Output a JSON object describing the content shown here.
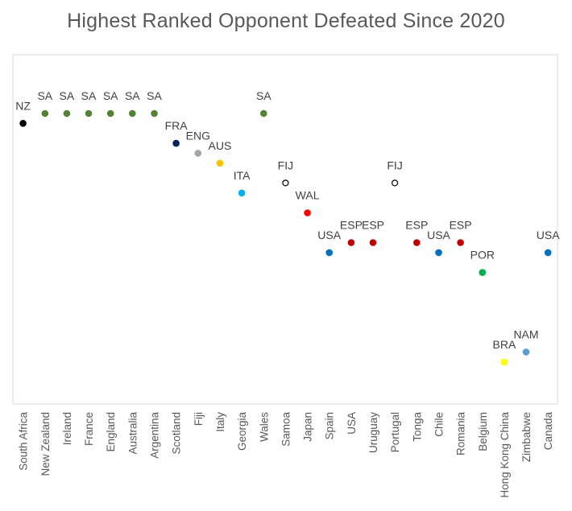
{
  "chart_data": {
    "type": "scatter",
    "title": "Highest Ranked Opponent Defeated Since 2020",
    "xlabel": "",
    "ylabel": "",
    "y_axis": "ranking (1 = top, shown at top)",
    "ylim": [
      1,
      26
    ],
    "grid": false,
    "categories": [
      "South Africa",
      "New Zealand",
      "Ireland",
      "France",
      "England",
      "Australia",
      "Argentina",
      "Scotland",
      "Fiji",
      "Italy",
      "Georgia",
      "Wales",
      "Samoa",
      "Japan",
      "Spain",
      "USA",
      "Uruguay",
      "Portugal",
      "Tonga",
      "Chile",
      "Romania",
      "Belgium",
      "Hong Kong China",
      "Zimbabwe",
      "Canada"
    ],
    "points": [
      {
        "team": "South Africa",
        "opponent": "NZ",
        "rank": 2,
        "color": "#000000",
        "hollow": false
      },
      {
        "team": "New Zealand",
        "opponent": "SA",
        "rank": 1,
        "color": "#548235",
        "hollow": false
      },
      {
        "team": "Ireland",
        "opponent": "SA",
        "rank": 1,
        "color": "#548235",
        "hollow": false
      },
      {
        "team": "France",
        "opponent": "SA",
        "rank": 1,
        "color": "#548235",
        "hollow": false
      },
      {
        "team": "England",
        "opponent": "SA",
        "rank": 1,
        "color": "#548235",
        "hollow": false
      },
      {
        "team": "Australia",
        "opponent": "SA",
        "rank": 1,
        "color": "#548235",
        "hollow": false
      },
      {
        "team": "Argentina",
        "opponent": "SA",
        "rank": 1,
        "color": "#548235",
        "hollow": false
      },
      {
        "team": "Scotland",
        "opponent": "FRA",
        "rank": 4,
        "color": "#002060",
        "hollow": false
      },
      {
        "team": "Fiji",
        "opponent": "ENG",
        "rank": 5,
        "color": "#a6a6a6",
        "hollow": false
      },
      {
        "team": "Italy",
        "opponent": "AUS",
        "rank": 6,
        "color": "#ffc000",
        "hollow": false
      },
      {
        "team": "Georgia",
        "opponent": "ITA",
        "rank": 9,
        "color": "#00b0f0",
        "hollow": false
      },
      {
        "team": "Wales",
        "opponent": "SA",
        "rank": 1,
        "color": "#548235",
        "hollow": false
      },
      {
        "team": "Samoa",
        "opponent": "FIJ",
        "rank": 8,
        "color": "#000000",
        "hollow": true
      },
      {
        "team": "Japan",
        "opponent": "WAL",
        "rank": 11,
        "color": "#ff0000",
        "hollow": false
      },
      {
        "team": "Spain",
        "opponent": "USA",
        "rank": 15,
        "color": "#0070c0",
        "hollow": false
      },
      {
        "team": "USA",
        "opponent": "ESP",
        "rank": 14,
        "color": "#c00000",
        "hollow": false
      },
      {
        "team": "Uruguay",
        "opponent": "ESP",
        "rank": 14,
        "color": "#c00000",
        "hollow": false
      },
      {
        "team": "Portugal",
        "opponent": "FIJ",
        "rank": 8,
        "color": "#000000",
        "hollow": true
      },
      {
        "team": "Tonga",
        "opponent": "ESP",
        "rank": 14,
        "color": "#c00000",
        "hollow": false
      },
      {
        "team": "Chile",
        "opponent": "USA",
        "rank": 15,
        "color": "#0070c0",
        "hollow": false
      },
      {
        "team": "Romania",
        "opponent": "ESP",
        "rank": 14,
        "color": "#c00000",
        "hollow": false
      },
      {
        "team": "Belgium",
        "opponent": "POR",
        "rank": 17,
        "color": "#00b050",
        "hollow": false
      },
      {
        "team": "Hong Kong China",
        "opponent": "BRA",
        "rank": 26,
        "color": "#ffff00",
        "hollow": false
      },
      {
        "team": "Zimbabwe",
        "opponent": "NAM",
        "rank": 25,
        "color": "#5b9bd5",
        "hollow": false
      },
      {
        "team": "Canada",
        "opponent": "USA",
        "rank": 15,
        "color": "#0070c0",
        "hollow": false
      }
    ]
  }
}
